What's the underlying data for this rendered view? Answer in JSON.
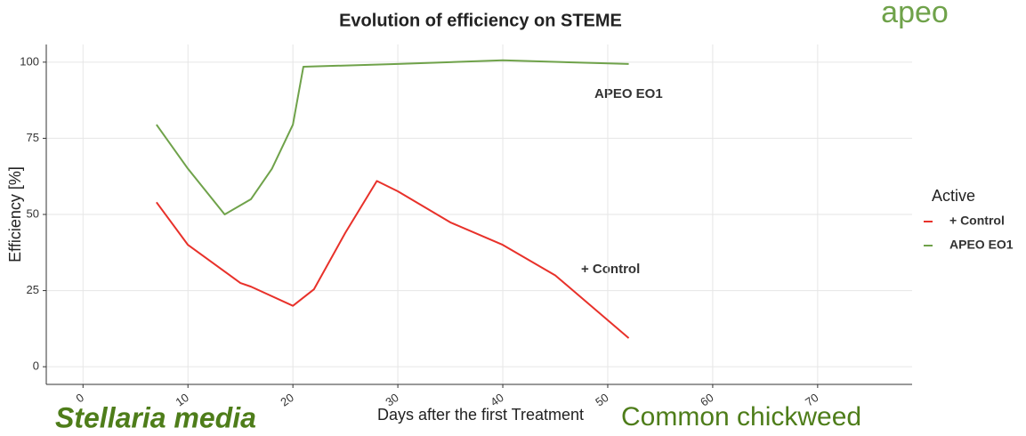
{
  "chart_data": {
    "type": "line",
    "title": "Evolution of efficiency on STEME",
    "x_label": "Days after the first Treatment",
    "y_label": "Efficiency [%]",
    "legend_title": "Active",
    "legend_position": "right",
    "grid": true,
    "xlim": [
      -3.5,
      79
    ],
    "xticks": [
      0,
      10,
      20,
      30,
      40,
      50,
      60,
      70
    ],
    "ylim": [
      -5.8,
      105.8
    ],
    "yticks": [
      0,
      25,
      50,
      75,
      100
    ],
    "series": [
      {
        "name": "+ Control",
        "color": "#e8312a",
        "x": [
          7,
          10,
          15,
          16,
          20,
          22,
          25,
          28,
          30,
          35,
          40,
          45,
          52
        ],
        "values": [
          54,
          40,
          27.5,
          26.3,
          20,
          25.4,
          44,
          61,
          57.6,
          47.4,
          40,
          30,
          9.4
        ]
      },
      {
        "name": "APEO EO1",
        "color": "#6fa24a",
        "x": [
          7,
          10,
          13.5,
          16,
          18,
          20,
          21,
          30,
          40,
          52
        ],
        "values": [
          79.5,
          65,
          50,
          55,
          65,
          79.5,
          98.5,
          99.4,
          100.6,
          99.4
        ]
      }
    ],
    "annotations": [
      "APEO EO1",
      "+ Control"
    ],
    "species_latin": "Stellaria media",
    "species_common": "Common chickweed",
    "logo": "apeo"
  }
}
